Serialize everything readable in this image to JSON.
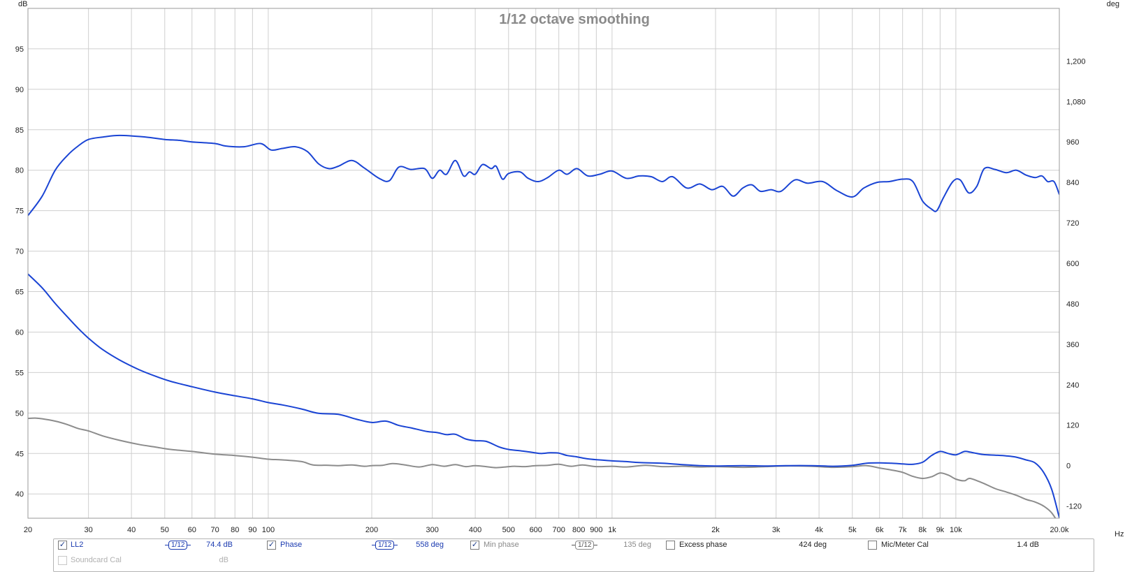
{
  "chart_data": {
    "type": "line",
    "title": "1/12 octave smoothing",
    "xscale": "log",
    "xlim": [
      20,
      20000
    ],
    "x_unit": "Hz",
    "xticks": [
      {
        "v": 20,
        "label": "20"
      },
      {
        "v": 30,
        "label": "30"
      },
      {
        "v": 40,
        "label": "40"
      },
      {
        "v": 50,
        "label": "50"
      },
      {
        "v": 60,
        "label": "60"
      },
      {
        "v": 70,
        "label": "70"
      },
      {
        "v": 80,
        "label": "80"
      },
      {
        "v": 90,
        "label": "90"
      },
      {
        "v": 100,
        "label": "100"
      },
      {
        "v": 200,
        "label": "200"
      },
      {
        "v": 300,
        "label": "300"
      },
      {
        "v": 400,
        "label": "400"
      },
      {
        "v": 500,
        "label": "500"
      },
      {
        "v": 600,
        "label": "600"
      },
      {
        "v": 700,
        "label": "700"
      },
      {
        "v": 800,
        "label": "800"
      },
      {
        "v": 900,
        "label": "900"
      },
      {
        "v": 1000,
        "label": "1k"
      },
      {
        "v": 2000,
        "label": "2k"
      },
      {
        "v": 3000,
        "label": "3k"
      },
      {
        "v": 4000,
        "label": "4k"
      },
      {
        "v": 5000,
        "label": "5k"
      },
      {
        "v": 6000,
        "label": "6k"
      },
      {
        "v": 7000,
        "label": "7k"
      },
      {
        "v": 8000,
        "label": "8k"
      },
      {
        "v": 9000,
        "label": "9k"
      },
      {
        "v": 10000,
        "label": "10k"
      },
      {
        "v": 20000,
        "label": "20.0k"
      }
    ],
    "y_left_label": "dB",
    "y_left_lim": [
      37,
      100
    ],
    "y_left_ticks": [
      40,
      45,
      50,
      55,
      60,
      65,
      70,
      75,
      80,
      85,
      90,
      95
    ],
    "y_right_label": "deg",
    "y_right_lim": [
      -156,
      1356
    ],
    "y_right_ticks": [
      {
        "v": -120,
        "label": "-120"
      },
      {
        "v": 0,
        "label": "0"
      },
      {
        "v": 120,
        "label": "120"
      },
      {
        "v": 240,
        "label": "240"
      },
      {
        "v": 360,
        "label": "360"
      },
      {
        "v": 480,
        "label": "480"
      },
      {
        "v": 600,
        "label": "600"
      },
      {
        "v": 720,
        "label": "720"
      },
      {
        "v": 840,
        "label": "840"
      },
      {
        "v": 960,
        "label": "960"
      },
      {
        "v": 1080,
        "label": "1,080"
      },
      {
        "v": 1200,
        "label": "1,200"
      }
    ],
    "grid": true,
    "series": [
      {
        "name": "LL2",
        "axis": "left",
        "color": "#1a44d4",
        "points": [
          [
            20,
            74.4
          ],
          [
            22,
            76.8
          ],
          [
            24,
            80.0
          ],
          [
            26,
            81.8
          ],
          [
            28,
            83.0
          ],
          [
            30,
            83.8
          ],
          [
            33,
            84.1
          ],
          [
            37,
            84.3
          ],
          [
            44,
            84.1
          ],
          [
            50,
            83.8
          ],
          [
            55,
            83.7
          ],
          [
            60,
            83.5
          ],
          [
            70,
            83.3
          ],
          [
            75,
            83.0
          ],
          [
            85,
            82.9
          ],
          [
            95,
            83.3
          ],
          [
            102,
            82.5
          ],
          [
            110,
            82.7
          ],
          [
            120,
            82.9
          ],
          [
            130,
            82.3
          ],
          [
            140,
            80.8
          ],
          [
            150,
            80.2
          ],
          [
            160,
            80.5
          ],
          [
            175,
            81.2
          ],
          [
            190,
            80.3
          ],
          [
            210,
            79.0
          ],
          [
            225,
            78.7
          ],
          [
            240,
            80.4
          ],
          [
            260,
            80.1
          ],
          [
            285,
            80.2
          ],
          [
            300,
            79.0
          ],
          [
            315,
            80.0
          ],
          [
            330,
            79.5
          ],
          [
            350,
            81.2
          ],
          [
            370,
            79.3
          ],
          [
            385,
            79.8
          ],
          [
            400,
            79.5
          ],
          [
            420,
            80.7
          ],
          [
            445,
            80.2
          ],
          [
            460,
            80.5
          ],
          [
            480,
            78.9
          ],
          [
            500,
            79.6
          ],
          [
            540,
            79.8
          ],
          [
            570,
            79.0
          ],
          [
            610,
            78.6
          ],
          [
            650,
            79.1
          ],
          [
            700,
            80.0
          ],
          [
            740,
            79.5
          ],
          [
            790,
            80.2
          ],
          [
            850,
            79.3
          ],
          [
            920,
            79.5
          ],
          [
            1000,
            79.9
          ],
          [
            1100,
            79.0
          ],
          [
            1200,
            79.3
          ],
          [
            1300,
            79.2
          ],
          [
            1400,
            78.6
          ],
          [
            1500,
            79.2
          ],
          [
            1650,
            77.8
          ],
          [
            1800,
            78.3
          ],
          [
            1950,
            77.6
          ],
          [
            2100,
            78.0
          ],
          [
            2250,
            76.8
          ],
          [
            2400,
            77.8
          ],
          [
            2550,
            78.2
          ],
          [
            2700,
            77.4
          ],
          [
            2900,
            77.6
          ],
          [
            3100,
            77.4
          ],
          [
            3400,
            78.8
          ],
          [
            3700,
            78.4
          ],
          [
            4100,
            78.6
          ],
          [
            4500,
            77.5
          ],
          [
            5000,
            76.7
          ],
          [
            5400,
            77.8
          ],
          [
            5900,
            78.5
          ],
          [
            6400,
            78.6
          ],
          [
            7000,
            78.9
          ],
          [
            7500,
            78.6
          ],
          [
            8000,
            76.2
          ],
          [
            8500,
            75.2
          ],
          [
            8800,
            75.0
          ],
          [
            9200,
            76.6
          ],
          [
            9800,
            78.6
          ],
          [
            10300,
            78.8
          ],
          [
            10900,
            77.2
          ],
          [
            11500,
            78.0
          ],
          [
            12100,
            80.2
          ],
          [
            13000,
            80.1
          ],
          [
            14000,
            79.7
          ],
          [
            15000,
            80.0
          ],
          [
            16000,
            79.4
          ],
          [
            17000,
            79.1
          ],
          [
            17800,
            79.3
          ],
          [
            18500,
            78.6
          ],
          [
            19300,
            78.6
          ],
          [
            20000,
            77.0
          ]
        ]
      },
      {
        "name": "Phase",
        "axis": "right",
        "color": "#1a44d4",
        "points": [
          [
            20,
            568
          ],
          [
            22,
            527
          ],
          [
            24,
            481
          ],
          [
            26,
            442
          ],
          [
            28,
            407
          ],
          [
            30,
            378
          ],
          [
            33,
            344
          ],
          [
            37,
            313
          ],
          [
            42,
            285
          ],
          [
            47,
            265
          ],
          [
            52,
            250
          ],
          [
            60,
            234
          ],
          [
            70,
            218
          ],
          [
            80,
            207
          ],
          [
            90,
            198
          ],
          [
            100,
            187
          ],
          [
            110,
            180
          ],
          [
            125,
            168
          ],
          [
            140,
            155
          ],
          [
            160,
            152
          ],
          [
            180,
            138
          ],
          [
            200,
            128
          ],
          [
            220,
            132
          ],
          [
            240,
            119
          ],
          [
            260,
            112
          ],
          [
            290,
            101
          ],
          [
            310,
            98
          ],
          [
            330,
            92
          ],
          [
            350,
            93
          ],
          [
            375,
            79
          ],
          [
            400,
            74
          ],
          [
            430,
            72
          ],
          [
            470,
            55
          ],
          [
            500,
            48
          ],
          [
            540,
            44
          ],
          [
            580,
            40
          ],
          [
            620,
            36
          ],
          [
            660,
            38
          ],
          [
            700,
            37
          ],
          [
            740,
            30
          ],
          [
            790,
            26
          ],
          [
            850,
            20
          ],
          [
            920,
            17
          ],
          [
            1000,
            14
          ],
          [
            1100,
            12
          ],
          [
            1200,
            9
          ],
          [
            1400,
            7
          ],
          [
            1600,
            3
          ],
          [
            1800,
            0
          ],
          [
            2000,
            -1
          ],
          [
            2400,
            0
          ],
          [
            2800,
            -1
          ],
          [
            3200,
            0
          ],
          [
            3800,
            0
          ],
          [
            4400,
            -2
          ],
          [
            5000,
            1
          ],
          [
            5500,
            7
          ],
          [
            6000,
            8
          ],
          [
            6500,
            7
          ],
          [
            7000,
            5
          ],
          [
            7500,
            4
          ],
          [
            8000,
            10
          ],
          [
            8500,
            30
          ],
          [
            9000,
            42
          ],
          [
            9500,
            36
          ],
          [
            10000,
            32
          ],
          [
            10600,
            42
          ],
          [
            11000,
            40
          ],
          [
            12000,
            33
          ],
          [
            13000,
            31
          ],
          [
            14000,
            29
          ],
          [
            15000,
            25
          ],
          [
            16000,
            17
          ],
          [
            17000,
            8
          ],
          [
            18000,
            -20
          ],
          [
            19000,
            -70
          ],
          [
            20000,
            -155
          ]
        ]
      },
      {
        "name": "Min phase",
        "axis": "right",
        "color": "#8c8c8c",
        "points": [
          [
            20,
            140
          ],
          [
            21,
            141
          ],
          [
            22,
            139
          ],
          [
            24,
            132
          ],
          [
            26,
            122
          ],
          [
            28,
            110
          ],
          [
            30,
            103
          ],
          [
            33,
            88
          ],
          [
            37,
            75
          ],
          [
            42,
            63
          ],
          [
            47,
            55
          ],
          [
            52,
            48
          ],
          [
            60,
            42
          ],
          [
            70,
            34
          ],
          [
            80,
            30
          ],
          [
            90,
            25
          ],
          [
            100,
            19
          ],
          [
            110,
            17
          ],
          [
            125,
            12
          ],
          [
            135,
            2
          ],
          [
            150,
            1
          ],
          [
            160,
            0
          ],
          [
            175,
            2
          ],
          [
            190,
            -2
          ],
          [
            200,
            0
          ],
          [
            215,
            1
          ],
          [
            230,
            6
          ],
          [
            250,
            2
          ],
          [
            275,
            -4
          ],
          [
            300,
            3
          ],
          [
            325,
            -2
          ],
          [
            350,
            3
          ],
          [
            375,
            -3
          ],
          [
            400,
            0
          ],
          [
            430,
            -3
          ],
          [
            460,
            -6
          ],
          [
            490,
            -4
          ],
          [
            520,
            -2
          ],
          [
            560,
            -3
          ],
          [
            600,
            0
          ],
          [
            650,
            1
          ],
          [
            700,
            4
          ],
          [
            760,
            -2
          ],
          [
            820,
            2
          ],
          [
            900,
            -3
          ],
          [
            1000,
            -2
          ],
          [
            1100,
            -4
          ],
          [
            1250,
            1
          ],
          [
            1400,
            -3
          ],
          [
            1600,
            -2
          ],
          [
            1800,
            -4
          ],
          [
            2000,
            -3
          ],
          [
            2400,
            -5
          ],
          [
            2800,
            -3
          ],
          [
            3200,
            -1
          ],
          [
            3800,
            -2
          ],
          [
            4400,
            -5
          ],
          [
            5000,
            -3
          ],
          [
            5500,
            0
          ],
          [
            6000,
            -7
          ],
          [
            6500,
            -13
          ],
          [
            7000,
            -20
          ],
          [
            7500,
            -32
          ],
          [
            8000,
            -38
          ],
          [
            8500,
            -33
          ],
          [
            9000,
            -22
          ],
          [
            9500,
            -28
          ],
          [
            10000,
            -40
          ],
          [
            10600,
            -45
          ],
          [
            11000,
            -38
          ],
          [
            12000,
            -52
          ],
          [
            13000,
            -68
          ],
          [
            14000,
            -78
          ],
          [
            15000,
            -88
          ],
          [
            16000,
            -100
          ],
          [
            17000,
            -108
          ],
          [
            18000,
            -120
          ],
          [
            19000,
            -140
          ],
          [
            20000,
            -175
          ]
        ]
      }
    ]
  },
  "legend": {
    "ll2": {
      "label": "LL2",
      "checked": true,
      "smoothing": "1/12",
      "value": "74.4 dB",
      "color": "#1a44d4"
    },
    "phase": {
      "label": "Phase",
      "checked": true,
      "smoothing": "1/12",
      "value": "558 deg",
      "color": "#1a44d4"
    },
    "min_phase": {
      "label": "Min phase",
      "checked": true,
      "smoothing": "1/12",
      "value": "135 deg",
      "color": "#8c8c8c"
    },
    "excess_phase": {
      "label": "Excess phase",
      "checked": false,
      "value": "424 deg"
    },
    "mic_meter_cal": {
      "label": "Mic/Meter Cal",
      "checked": false,
      "value": "1.4 dB"
    },
    "soundcard_cal": {
      "label": "Soundcard Cal",
      "checked": false,
      "value": "dB"
    }
  },
  "icons": {
    "check": "✓"
  }
}
